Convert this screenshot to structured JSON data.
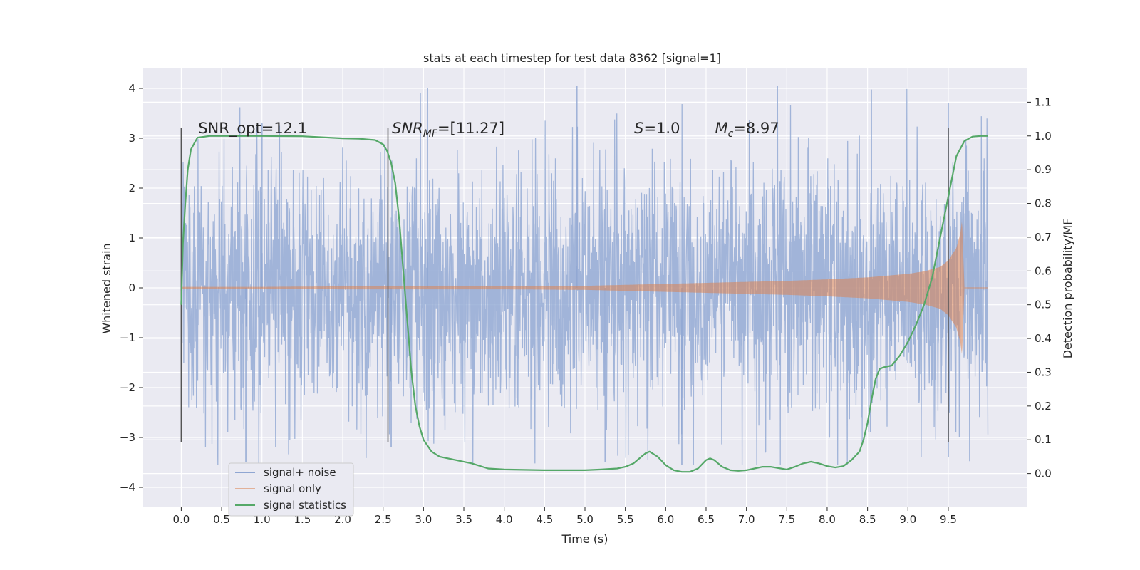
{
  "chart_data": {
    "type": "line",
    "title": "stats at each timestep for test data 8362 [signal=1]",
    "xlabel": "Time (s)",
    "ylabel": "Whitened strain",
    "y2label": "Detection probability/MF",
    "xlim": [
      -0.48,
      10.48
    ],
    "ylim": [
      -4.4,
      4.4
    ],
    "y2lim": [
      -0.1,
      1.2
    ],
    "xticks": [
      "0.0",
      "0.5",
      "1.0",
      "1.5",
      "2.0",
      "2.5",
      "3.0",
      "3.5",
      "4.0",
      "4.5",
      "5.0",
      "5.5",
      "6.0",
      "6.5",
      "7.0",
      "7.5",
      "8.0",
      "8.5",
      "9.0",
      "9.5"
    ],
    "yticks": [
      "4",
      "3",
      "2",
      "1",
      "0",
      "−1",
      "−2",
      "−3",
      "−4"
    ],
    "y2ticks": [
      "1.1",
      "1.0",
      "0.9",
      "0.8",
      "0.7",
      "0.6",
      "0.5",
      "0.4",
      "0.3",
      "0.2",
      "0.1",
      "0.0"
    ],
    "grid": true,
    "legend_position": "lower-left",
    "series": [
      {
        "name": "signal+ noise",
        "color": "#8fa6d2",
        "axis": "left",
        "render": "dense-noise",
        "x_range": [
          0.0,
          9.99
        ],
        "std": 1.0,
        "max": 4.05,
        "min": -3.55,
        "peaks": [
          [
            0.8,
            -3.5
          ],
          [
            1.0,
            3.3
          ],
          [
            2.6,
            -3.2
          ],
          [
            3.05,
            4.0
          ],
          [
            4.9,
            4.05
          ],
          [
            5.25,
            -3.5
          ],
          [
            6.2,
            -3.55
          ],
          [
            9.5,
            3.7
          ],
          [
            9.5,
            -3.4
          ]
        ]
      },
      {
        "name": "signal only",
        "color": "#dd8452",
        "axis": "left",
        "render": "chirp-envelope",
        "x": [
          0.0,
          1.0,
          2.0,
          3.0,
          4.0,
          5.0,
          5.5,
          6.0,
          6.5,
          7.0,
          7.5,
          8.0,
          8.5,
          9.0,
          9.2,
          9.4,
          9.5,
          9.6,
          9.65,
          9.67,
          9.7
        ],
        "envelope": [
          0.02,
          0.02,
          0.03,
          0.03,
          0.03,
          0.04,
          0.06,
          0.08,
          0.1,
          0.12,
          0.14,
          0.17,
          0.21,
          0.28,
          0.33,
          0.42,
          0.55,
          0.8,
          1.1,
          1.35,
          0.0
        ]
      },
      {
        "name": "signal statistics",
        "color": "#55a868",
        "axis": "right",
        "x": [
          0.0,
          0.02,
          0.05,
          0.08,
          0.12,
          0.2,
          0.35,
          0.6,
          1.0,
          1.5,
          2.0,
          2.2,
          2.4,
          2.5,
          2.55,
          2.6,
          2.65,
          2.7,
          2.75,
          2.8,
          2.85,
          2.9,
          2.95,
          3.0,
          3.1,
          3.2,
          3.4,
          3.6,
          3.8,
          4.0,
          4.5,
          5.0,
          5.2,
          5.4,
          5.5,
          5.6,
          5.7,
          5.75,
          5.8,
          5.9,
          6.0,
          6.1,
          6.2,
          6.3,
          6.4,
          6.5,
          6.55,
          6.6,
          6.7,
          6.8,
          6.9,
          7.0,
          7.1,
          7.2,
          7.3,
          7.4,
          7.5,
          7.6,
          7.7,
          7.8,
          7.9,
          8.0,
          8.1,
          8.2,
          8.3,
          8.4,
          8.45,
          8.5,
          8.55,
          8.6,
          8.65,
          8.7,
          8.8,
          8.9,
          9.0,
          9.1,
          9.2,
          9.3,
          9.4,
          9.45,
          9.5,
          9.55,
          9.6,
          9.7,
          9.8,
          9.9,
          9.99
        ],
        "values": [
          0.5,
          0.68,
          0.8,
          0.9,
          0.96,
          0.995,
          1.0,
          1.0,
          1.0,
          0.999,
          0.993,
          0.992,
          0.988,
          0.975,
          0.955,
          0.92,
          0.86,
          0.75,
          0.6,
          0.45,
          0.3,
          0.2,
          0.14,
          0.1,
          0.065,
          0.05,
          0.04,
          0.03,
          0.015,
          0.012,
          0.01,
          0.01,
          0.012,
          0.015,
          0.02,
          0.03,
          0.05,
          0.06,
          0.065,
          0.05,
          0.025,
          0.01,
          0.005,
          0.005,
          0.015,
          0.04,
          0.045,
          0.04,
          0.02,
          0.01,
          0.008,
          0.01,
          0.015,
          0.02,
          0.02,
          0.016,
          0.012,
          0.02,
          0.03,
          0.035,
          0.03,
          0.022,
          0.018,
          0.022,
          0.04,
          0.065,
          0.1,
          0.15,
          0.22,
          0.28,
          0.31,
          0.315,
          0.32,
          0.35,
          0.39,
          0.44,
          0.5,
          0.58,
          0.7,
          0.76,
          0.82,
          0.88,
          0.94,
          0.985,
          0.998,
          1.0,
          1.0
        ]
      }
    ],
    "annotations": [
      {
        "x": 0.21,
        "y": 3.2,
        "text": "SNR_opt=12.1"
      },
      {
        "x": 2.61,
        "y": 3.2,
        "text": "SNR",
        "sub": "MF",
        "rest": "=[11.27]"
      },
      {
        "x": 5.61,
        "y": 3.2,
        "text": "S",
        "sub": "",
        "rest": "=1.0"
      },
      {
        "x": 6.61,
        "y": 3.2,
        "text": "M",
        "sub": "c",
        "rest": "=8.97"
      }
    ],
    "vlines": [
      {
        "x": 0.0,
        "y_range": [
          -3.1,
          3.2
        ]
      },
      {
        "x": 2.56,
        "y_range": [
          -3.1,
          3.2
        ]
      },
      {
        "x": 9.5,
        "y_range": [
          -3.1,
          3.2
        ]
      }
    ]
  }
}
